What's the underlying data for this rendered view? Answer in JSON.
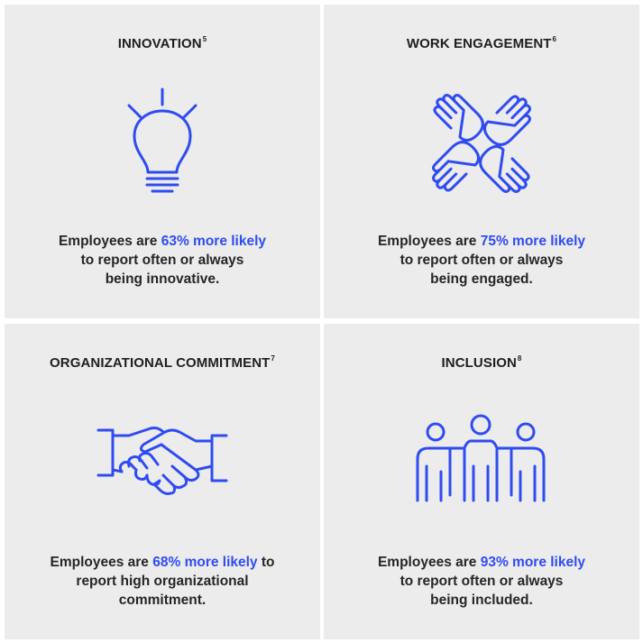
{
  "cards": [
    {
      "title": "INNOVATION",
      "footnote": "5",
      "icon": "lightbulb-icon",
      "text_before": "Employees are ",
      "highlight": "63% more likely",
      "line2": "to report often or always",
      "line3": "being innovative."
    },
    {
      "title": "WORK ENGAGEMENT",
      "footnote": "6",
      "icon": "four-hands-icon",
      "text_before": "Employees are ",
      "highlight": "75% more likely",
      "line2": "to report often or always",
      "line3": "being engaged."
    },
    {
      "title": "ORGANIZATIONAL COMMITMENT",
      "footnote": "7",
      "icon": "handshake-icon",
      "text_before": "Employees are ",
      "highlight": "68% more likely",
      "text_after": " to",
      "line2": "report high organizational",
      "line3": "commitment."
    },
    {
      "title": "INCLUSION",
      "footnote": "8",
      "icon": "group-of-people-icon",
      "text_before": "Employees are ",
      "highlight": "93% more likely",
      "line2": "to report often or always",
      "line3": "being included."
    }
  ],
  "colors": {
    "accent": "#2f4cf0",
    "card_background": "#ececec",
    "text": "#262626"
  }
}
